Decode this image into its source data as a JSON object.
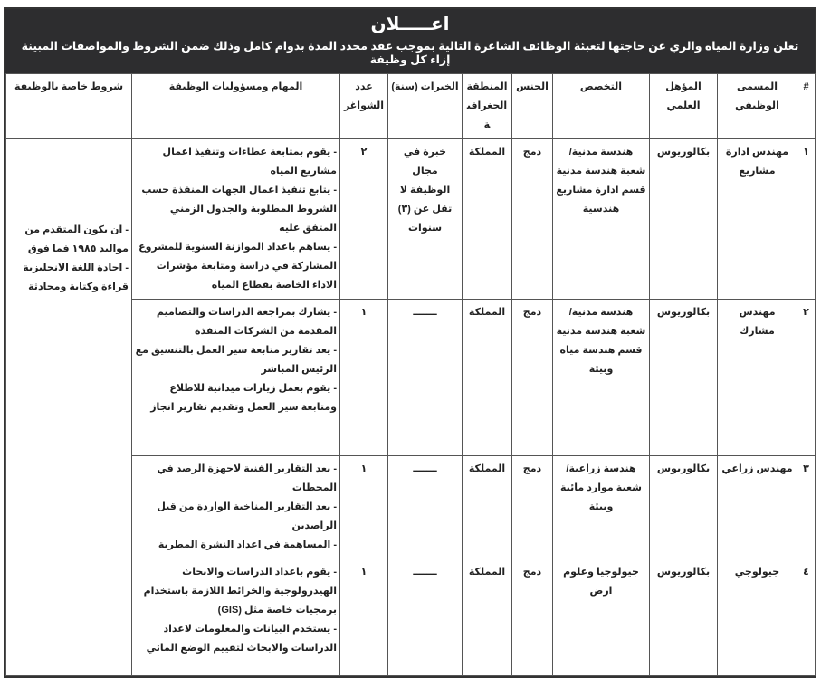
{
  "banner": {
    "title": "اعـــــلان",
    "intro": "تعلن وزارة المياه والري عن حاجتها لتعبئة الوظائف الشاغرة التالية بموجب عقد محدد المدة بدوام كامل وذلك ضمن الشروط والمواصفات المبينة إزاء كل وظيفة"
  },
  "table": {
    "headers": [
      "#",
      "المسمى الوظيفي",
      "المؤهل العلمي",
      "التخصص",
      "الجنس",
      "المنطقة الجغرافية",
      "الخبرات (سنة)",
      "عدد الشواغر",
      "المهام ومسؤوليات الوظيفة",
      "شروط خاصة بالوظيفة"
    ],
    "special_conditions": [
      "- ان يكون المتقدم من مواليد ١٩٨٥ فما فوق",
      "- اجادة اللغة الانجليزية قراءة وكتابة ومحادثة"
    ],
    "rows": [
      {
        "num": "١",
        "title": "مهندس ادارة مشاريع",
        "qualification": "بكالوريوس",
        "specialization": "هندسة مدنية/ شعبة هندسة مدنية قسم ادارة مشاريع هندسية",
        "gender": "دمج",
        "region": "المملكة",
        "experience": "خبرة في مجال الوظيفة لا تقل عن (٣) سنوات",
        "vacancies": "٢",
        "duties": [
          "- يقوم بمتابعة عطاءات وتنفيذ اعمال مشاريع المياه",
          "- يتابع تنفيذ اعمال الجهات المنفذة حسب الشروط المطلوبة والجدول الزمني المتفق عليه",
          "- يساهم باعداد الموازنة السنوية للمشروع المشاركة في دراسة ومتابعة مؤشرات الاداء الخاصة بقطاع المياه"
        ]
      },
      {
        "num": "٢",
        "title": "مهندس مشارك",
        "qualification": "بكالوريوس",
        "specialization": "هندسة مدنية/ شعبة هندسة مدنية قسم هندسة مياه وبيئة",
        "gender": "دمج",
        "region": "المملكة",
        "experience": "ـــــــ",
        "vacancies": "١",
        "duties": [
          "- يشارك بمراجعة الدراسات والتصاميم المقدمة من الشركات المنفذة",
          "- يعد تقارير متابعة سير العمل بالتنسيق مع الرئيس المباشر",
          "- يقوم بعمل زيارات ميدانية للاطلاع ومتابعة سير العمل وتقديم تقارير انجاز"
        ]
      },
      {
        "num": "٣",
        "title": "مهندس زراعي",
        "qualification": "بكالوريوس",
        "specialization": "هندسة زراعية/ شعبة موارد مائية وبيئة",
        "gender": "دمج",
        "region": "المملكة",
        "experience": "ـــــــ",
        "vacancies": "١",
        "duties": [
          "- يعد التقارير الفنية لاجهزة الرصد في المحطات",
          "- يعد التقارير المناخية الواردة من قبل الراصدين",
          "- المساهمة في اعداد النشرة المطرية"
        ]
      },
      {
        "num": "٤",
        "title": "جيولوجي",
        "qualification": "بكالوريوس",
        "specialization": "جيولوجيا وعلوم ارض",
        "gender": "دمج",
        "region": "المملكة",
        "experience": "ـــــــ",
        "vacancies": "١",
        "duties": [
          "- يقوم باعداد الدراسات والابحاث الهيدرولوجية والخرائط اللازمة باستخدام برمجيات خاصة مثل (GIS)",
          "- يستخدم البيانات والمعلومات لاعداد الدراسات والابحاث لتقييم الوضع المائي"
        ]
      }
    ]
  }
}
